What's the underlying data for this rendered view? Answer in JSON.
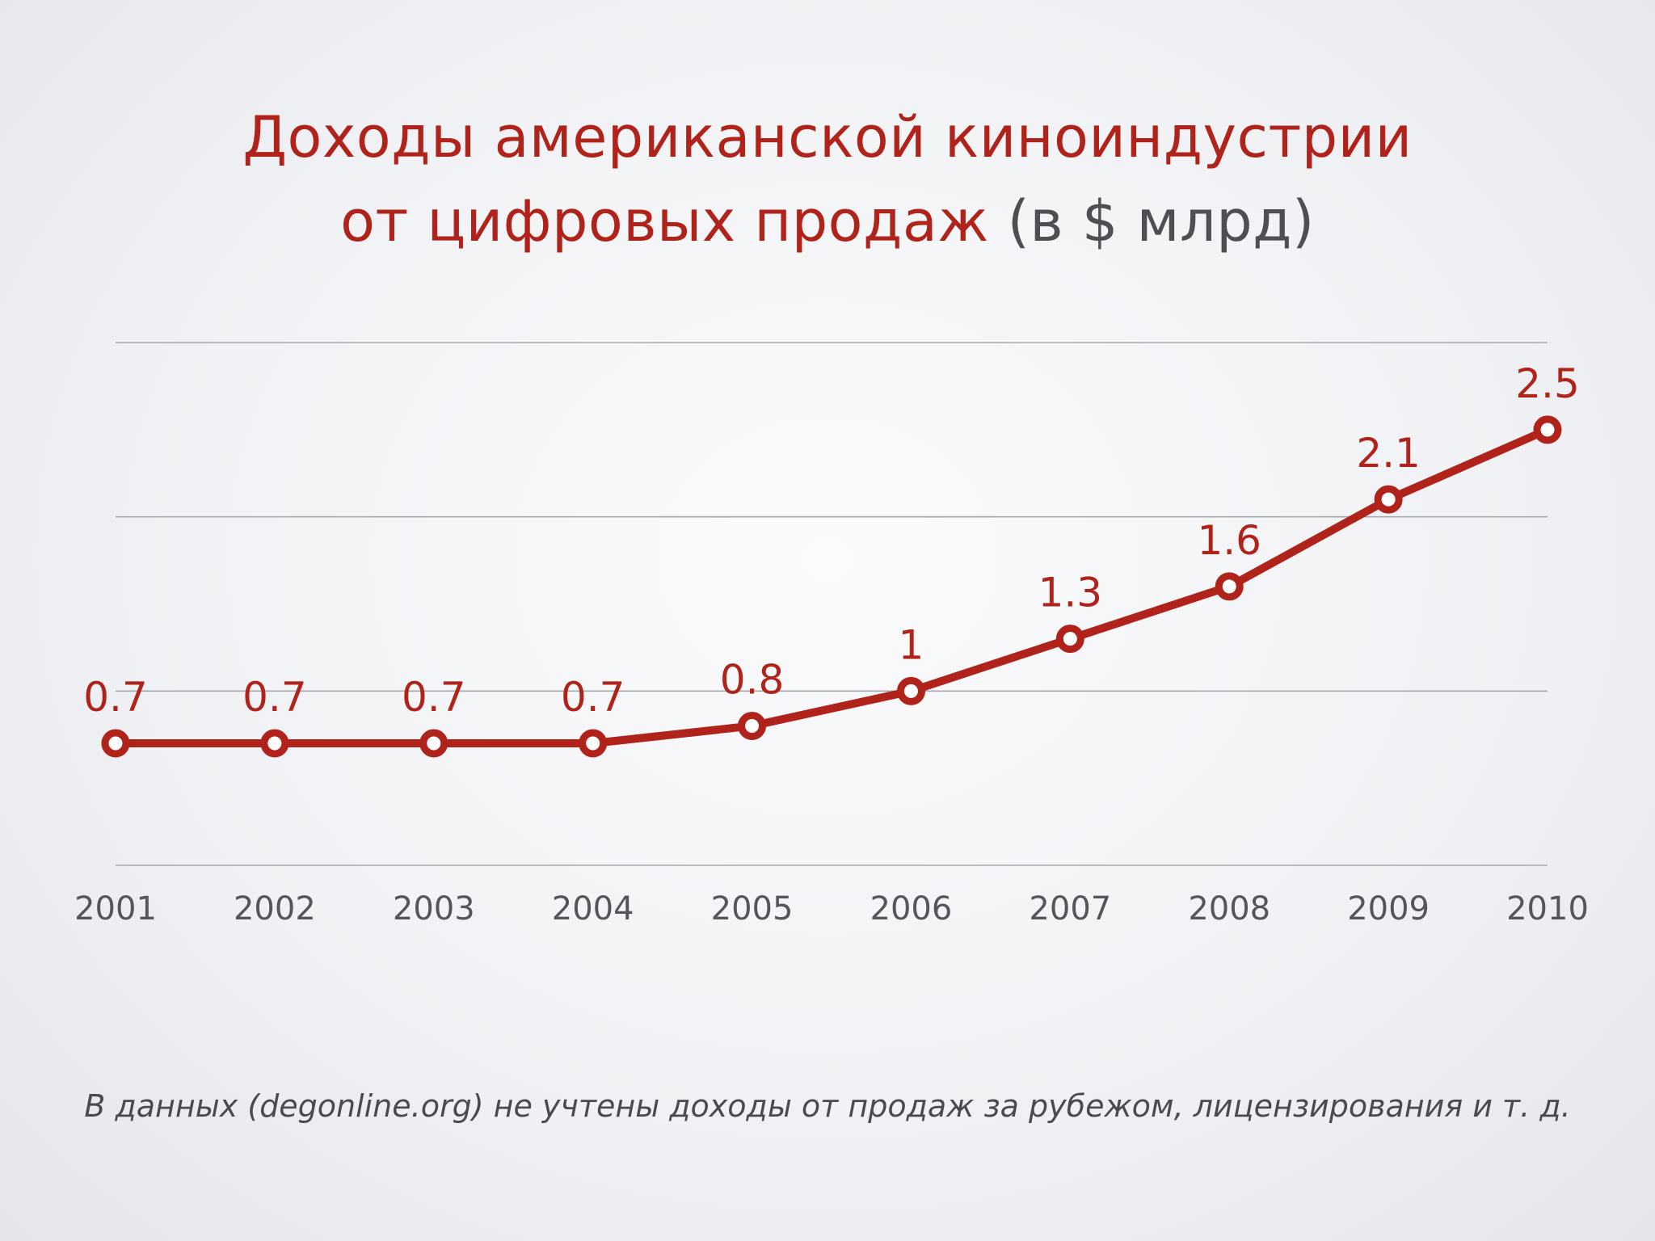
{
  "title": {
    "line1": "Доходы американской киноиндустрии",
    "line2_main": "от цифровых продаж",
    "line2_unit": "(в $ млрд)"
  },
  "note": "В данных (degonline.org) не учтены доходы от продаж за рубежом, лицензирования и т. д.",
  "colors": {
    "line": "#b0231a",
    "title": "#b0231a",
    "unit": "#4e4f53",
    "grid": "#a6a8ad",
    "tick": "#55565b"
  },
  "chart_data": {
    "type": "line",
    "title": "Доходы американской киноиндустрии от цифровых продаж (в $ млрд)",
    "categories": [
      "2001",
      "2002",
      "2003",
      "2004",
      "2005",
      "2006",
      "2007",
      "2008",
      "2009",
      "2010"
    ],
    "series": [
      {
        "values": [
          0.7,
          0.7,
          0.7,
          0.7,
          0.8,
          1,
          1.3,
          1.6,
          2.1,
          2.5
        ],
        "labels": [
          "0.7",
          "0.7",
          "0.7",
          "0.7",
          "0.8",
          "1",
          "1.3",
          "1.6",
          "2.1",
          "2.5"
        ]
      }
    ],
    "ylim": [
      0,
      3
    ],
    "grid": true,
    "y_tick_labels_shown": false,
    "legend": "none"
  }
}
